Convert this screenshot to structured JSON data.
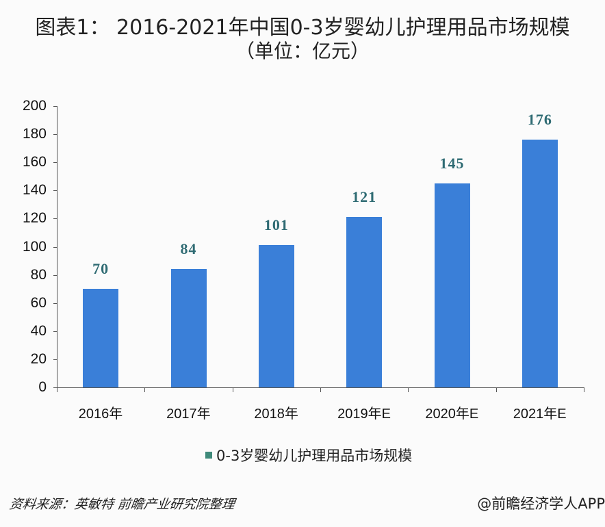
{
  "header": {
    "title": "图表1： 2016-2021年中国0-3岁婴幼儿护理用品市场规模",
    "subtitle": "（单位：亿元）"
  },
  "legend": {
    "label": "0-3岁婴幼儿护理用品市场规模",
    "color": "#3f8a7a"
  },
  "footer": {
    "source": "资料来源：英敏特 前瞻产业研究院整理",
    "credit": "@前瞻经济学人APP"
  },
  "colors": {
    "bar": "#3a7fd8",
    "data_label": "#2f6b73",
    "axis": "#555555"
  },
  "chart_data": {
    "type": "bar",
    "title": "图表1： 2016-2021年中国0-3岁婴幼儿护理用品市场规模（单位：亿元）",
    "xlabel": "",
    "ylabel": "",
    "unit": "亿元",
    "categories": [
      "2016年",
      "2017年",
      "2018年",
      "2019年E",
      "2020年E",
      "2021年E"
    ],
    "series": [
      {
        "name": "0-3岁婴幼儿护理用品市场规模",
        "values": [
          70,
          84,
          101,
          121,
          145,
          176
        ]
      }
    ],
    "data_labels": [
      "70",
      "84",
      "101",
      "121",
      "145",
      "176"
    ],
    "yticks": [
      0,
      20,
      40,
      60,
      80,
      100,
      120,
      140,
      160,
      180,
      200
    ],
    "ylim": [
      0,
      200
    ],
    "grid": false,
    "legend_position": "bottom"
  }
}
